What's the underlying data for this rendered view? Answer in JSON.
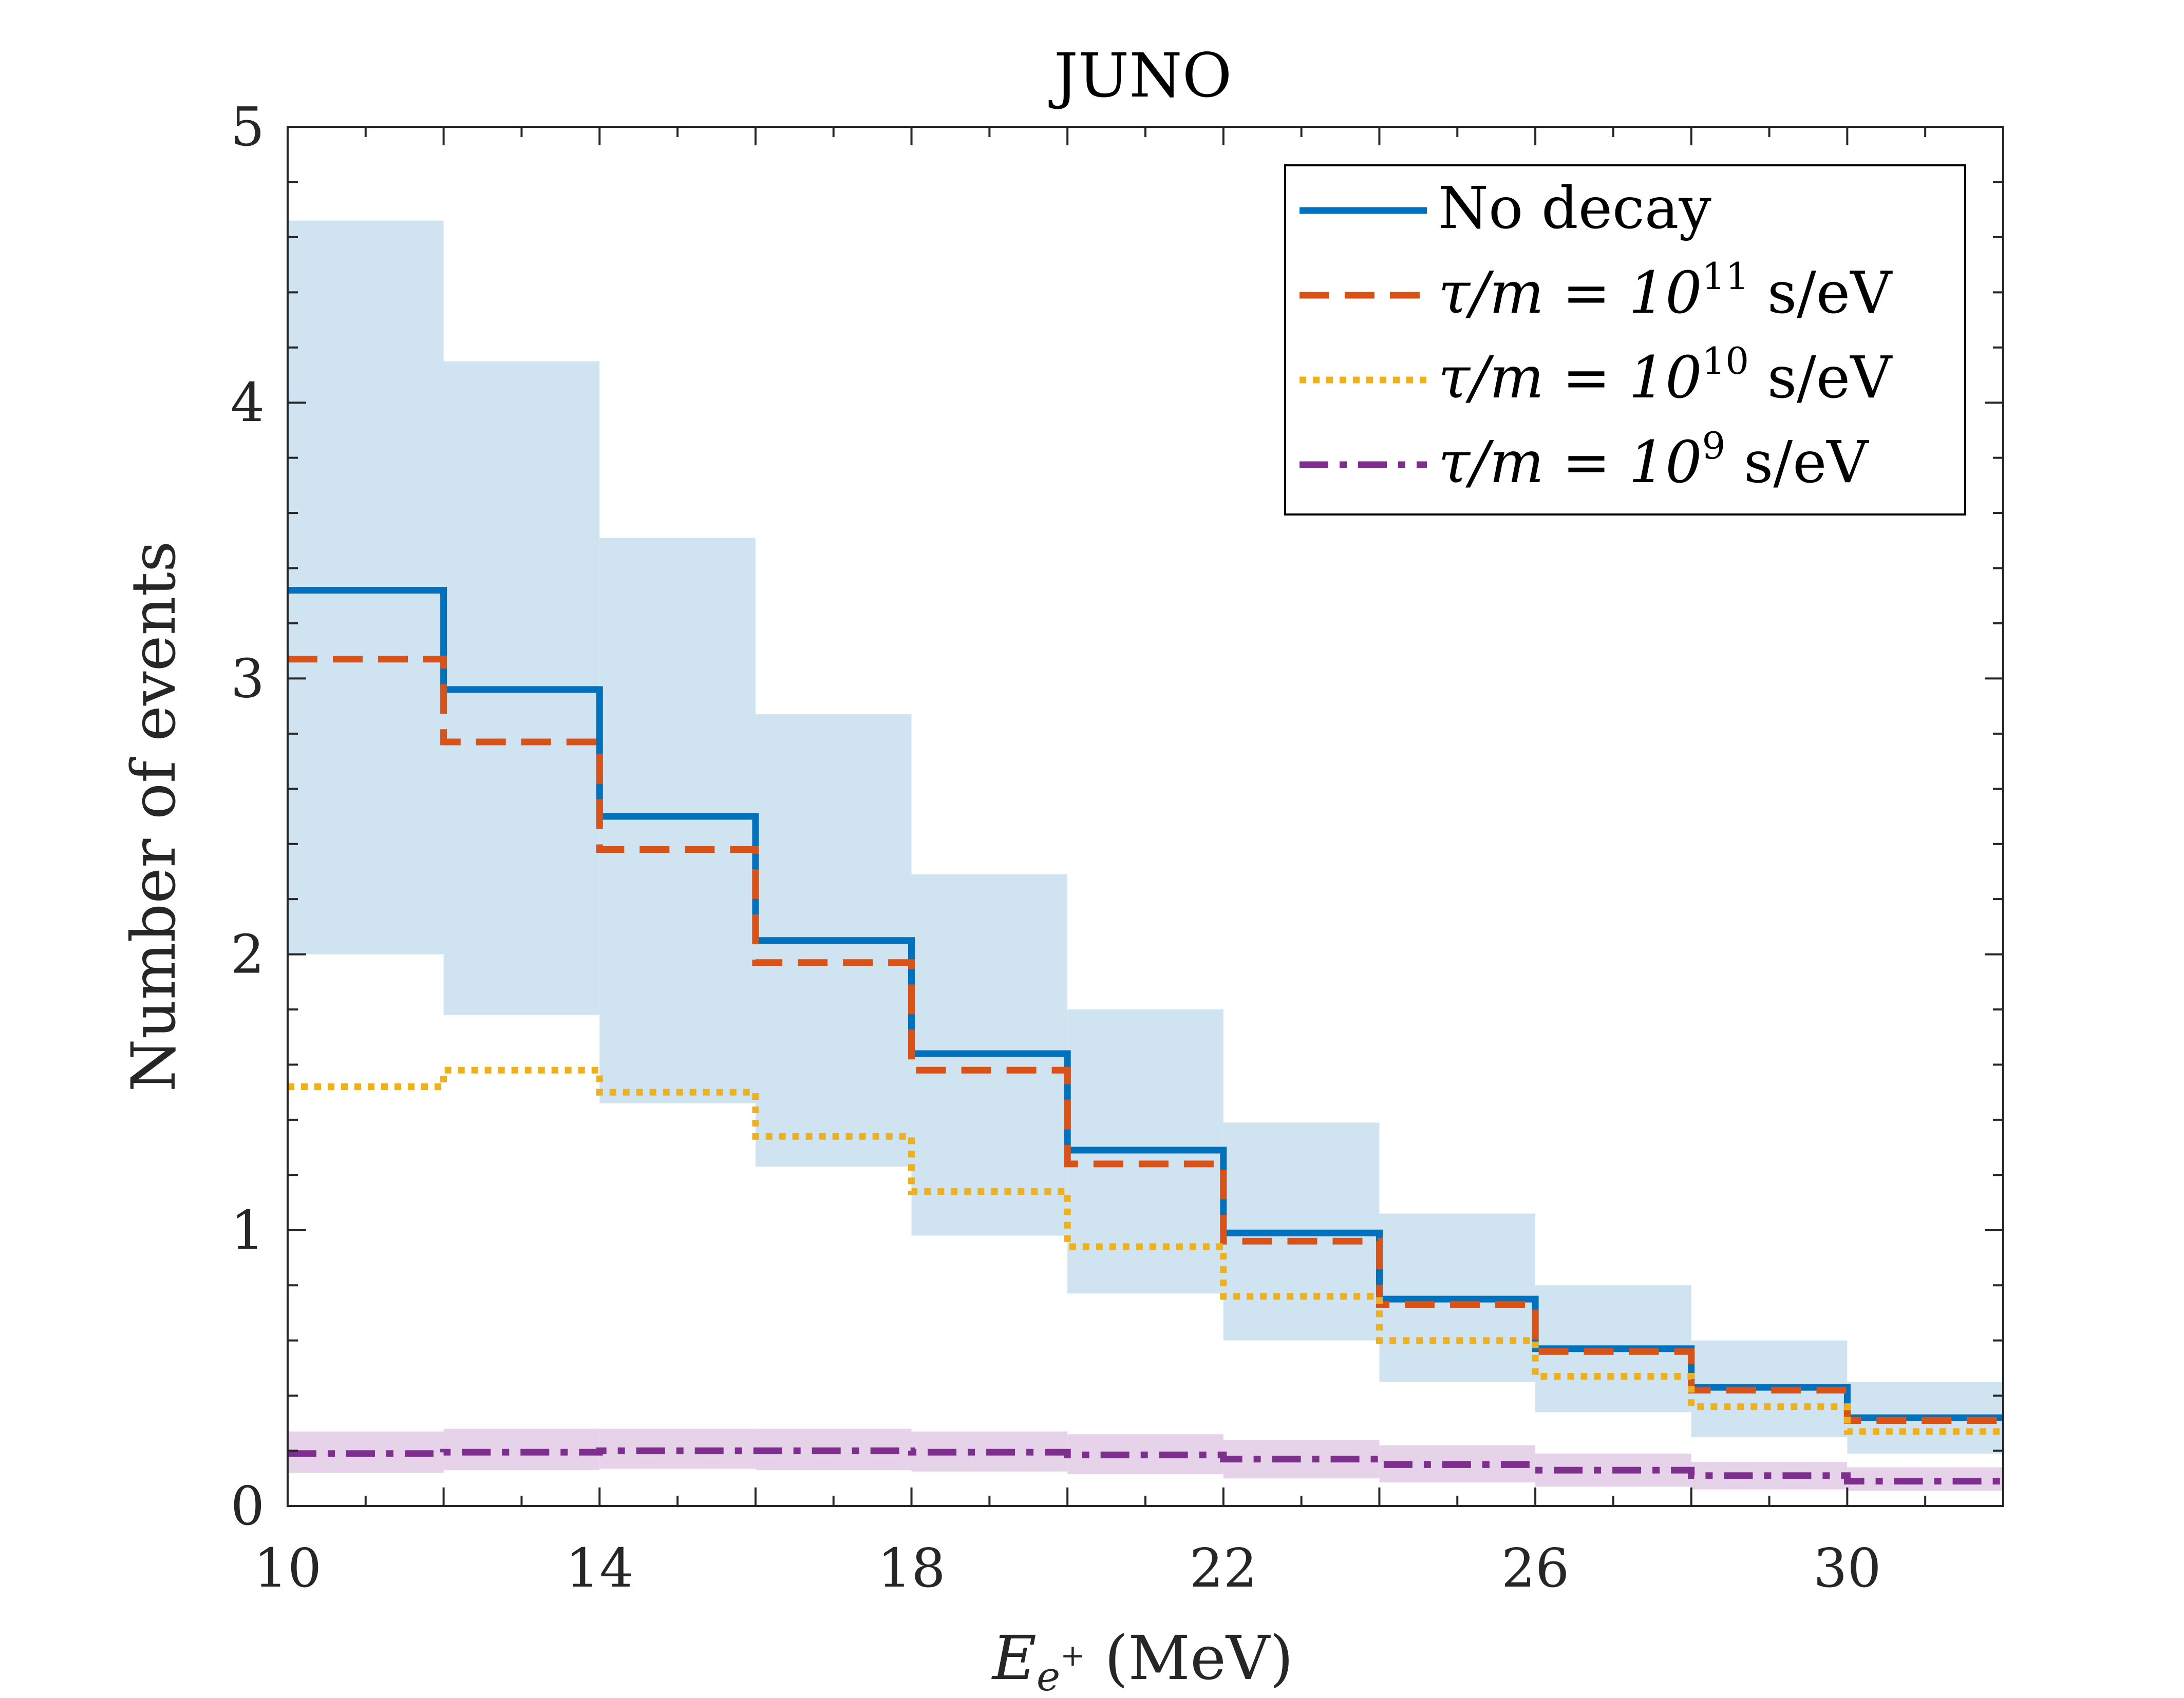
{
  "chart_data": {
    "type": "step",
    "title": "JUNO",
    "xlabel": {
      "main": "E",
      "sub": "e",
      "sup": "+",
      "unit": " (MeV)"
    },
    "ylabel": "Number of events",
    "xlim": [
      10,
      32
    ],
    "ylim": [
      0,
      5
    ],
    "xticks": [
      10,
      14,
      18,
      22,
      26,
      30
    ],
    "yticks": [
      0,
      1,
      2,
      3,
      4,
      5
    ],
    "bin_edges": [
      10,
      12,
      14,
      16,
      18,
      20,
      22,
      24,
      26,
      28,
      30,
      32
    ],
    "bands": [
      {
        "name": "No decay uncertainty",
        "color": "#cfe3f0",
        "lower": [
          2.0,
          1.78,
          1.46,
          1.23,
          0.98,
          0.77,
          0.6,
          0.45,
          0.34,
          0.25,
          0.19
        ],
        "upper": [
          4.66,
          4.15,
          3.51,
          2.87,
          2.29,
          1.8,
          1.39,
          1.06,
          0.8,
          0.6,
          0.45
        ]
      },
      {
        "name": "tau/m = 10^9 uncertainty",
        "color": "#e6d3ea",
        "lower": [
          0.12,
          0.13,
          0.135,
          0.13,
          0.125,
          0.115,
          0.1,
          0.085,
          0.07,
          0.06,
          0.055
        ],
        "upper": [
          0.27,
          0.28,
          0.28,
          0.28,
          0.27,
          0.26,
          0.24,
          0.22,
          0.19,
          0.16,
          0.14
        ]
      }
    ],
    "series": [
      {
        "name": "No decay",
        "color": "#0072bd",
        "style": "solid",
        "values": [
          3.32,
          2.96,
          2.5,
          2.05,
          1.64,
          1.29,
          0.99,
          0.75,
          0.57,
          0.43,
          0.32
        ]
      },
      {
        "name": "τ/m = 10^11 s/eV",
        "color": "#d95319",
        "style": "dashed",
        "values": [
          3.07,
          2.77,
          2.38,
          1.97,
          1.58,
          1.24,
          0.96,
          0.73,
          0.56,
          0.42,
          0.31
        ]
      },
      {
        "name": "τ/m = 10^10 s/eV",
        "color": "#edb120",
        "style": "dotted",
        "values": [
          1.52,
          1.58,
          1.5,
          1.34,
          1.14,
          0.94,
          0.76,
          0.6,
          0.47,
          0.36,
          0.27
        ]
      },
      {
        "name": "τ/m = 10^9 s/eV",
        "color": "#7e2f8e",
        "style": "dashdot",
        "values": [
          0.19,
          0.195,
          0.2,
          0.2,
          0.195,
          0.185,
          0.17,
          0.15,
          0.13,
          0.11,
          0.09
        ]
      }
    ],
    "legend": {
      "placement": "top-right",
      "entries": [
        {
          "text": "No decay"
        },
        {
          "prefix": "τ/m = 10",
          "exp": "11",
          "suffix": " s/eV"
        },
        {
          "prefix": "τ/m = 10",
          "exp": "10",
          "suffix": " s/eV"
        },
        {
          "prefix": "τ/m = 10",
          "exp": "9",
          "suffix": " s/eV"
        }
      ]
    }
  }
}
